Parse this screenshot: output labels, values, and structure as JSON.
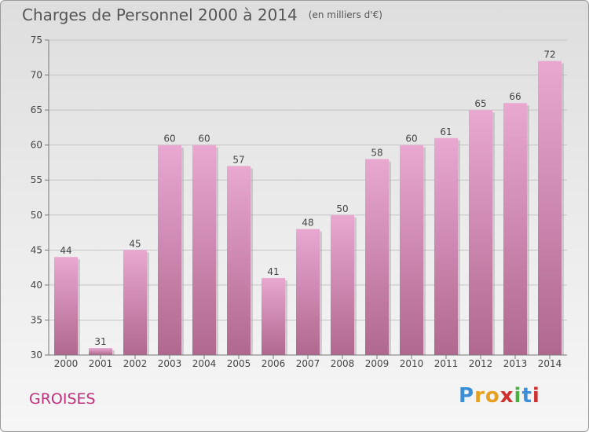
{
  "header": {
    "title": "Charges de Personnel 2000 à 2014",
    "unit": "(en milliers d'€)"
  },
  "footer": {
    "commune": "GROISES",
    "logo": "Proxiti"
  },
  "colors": {
    "bar_top": "#e8a8d0",
    "bar_bottom": "#b06890",
    "commune_text": "#c0307a"
  },
  "chart_data": {
    "type": "bar",
    "title": "Charges de Personnel 2000 à 2014",
    "subtitle": "(en milliers d'€)",
    "categories": [
      "2000",
      "2001",
      "2002",
      "2003",
      "2004",
      "2005",
      "2006",
      "2007",
      "2008",
      "2009",
      "2010",
      "2011",
      "2012",
      "2013",
      "2014"
    ],
    "values": [
      44,
      31,
      45,
      60,
      60,
      57,
      41,
      48,
      50,
      58,
      60,
      61,
      65,
      66,
      72
    ],
    "ylim": [
      30,
      75
    ],
    "yticks": [
      30,
      35,
      40,
      45,
      50,
      55,
      60,
      65,
      70,
      75
    ],
    "grid": true,
    "data_labels": true
  }
}
